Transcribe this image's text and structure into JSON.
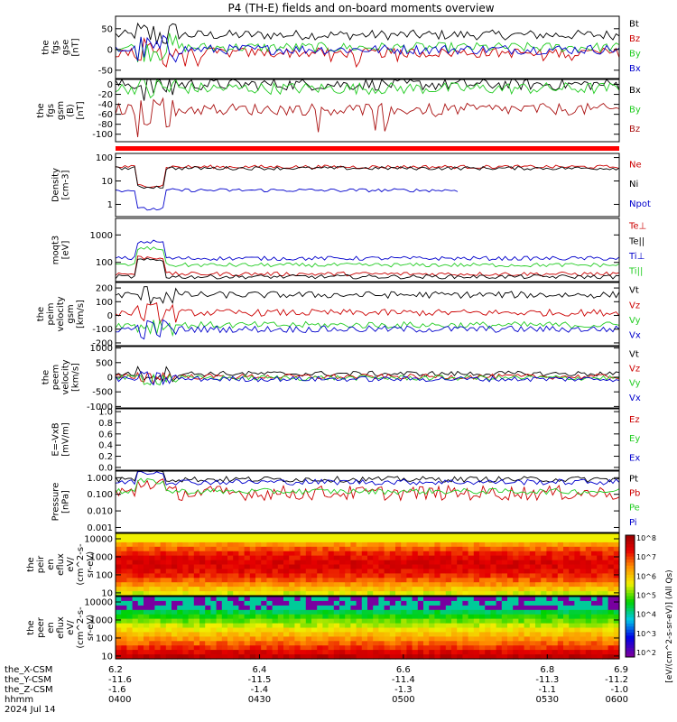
{
  "title": "P4 (TH-E) fields and on-board moments overview",
  "date_label": "2024 Jul 14",
  "colors": {
    "black": "#000000",
    "red": "#cc0000",
    "green": "#22cc22",
    "blue": "#0000cc",
    "darkred": "#aa1111"
  },
  "chart_data": [
    {
      "type": "line",
      "id": "fgs_gse",
      "ylabel": [
        "the",
        "fgs",
        "gse",
        "[nT]"
      ],
      "ylim": [
        -70,
        80
      ],
      "ticks": [
        "50",
        "0",
        "-50"
      ],
      "tick_values": [
        50,
        0,
        -50
      ],
      "series": [
        {
          "name": "Bt",
          "color": "black"
        },
        {
          "name": "Bz",
          "color": "red"
        },
        {
          "name": "By",
          "color": "green"
        },
        {
          "name": "Bx",
          "color": "blue"
        }
      ]
    },
    {
      "type": "line",
      "id": "fgs_gsm",
      "ylabel": [
        "the",
        "fgs",
        "gsm",
        "(B)",
        "[nT]"
      ],
      "ylim": [
        -115,
        10
      ],
      "ticks": [
        "0",
        "-20",
        "-40",
        "-60",
        "-80",
        "-100"
      ],
      "tick_values": [
        0,
        -20,
        -40,
        -60,
        -80,
        -100
      ],
      "series": [
        {
          "name": "Bx",
          "color": "black"
        },
        {
          "name": "By",
          "color": "green"
        },
        {
          "name": "Bz",
          "color": "darkred"
        }
      ]
    },
    {
      "type": "line",
      "id": "density",
      "ylabel": [
        "Density",
        "[cm-3]"
      ],
      "log": true,
      "ylim": [
        0.3,
        150
      ],
      "ticks": [
        "100",
        "10",
        "1"
      ],
      "tick_values": [
        100,
        10,
        1
      ],
      "series": [
        {
          "name": "Ne",
          "color": "red"
        },
        {
          "name": "Ni",
          "color": "black"
        },
        {
          "name": "Npot",
          "color": "blue"
        }
      ]
    },
    {
      "type": "line",
      "id": "temperature",
      "ylabel": [
        "moqt3",
        "[eV]"
      ],
      "log": true,
      "ylim": [
        20,
        4000
      ],
      "ticks": [
        "1000",
        "100"
      ],
      "tick_values": [
        1000,
        100
      ],
      "series": [
        {
          "name": "Te⊥",
          "color": "red"
        },
        {
          "name": "Te||",
          "color": "black"
        },
        {
          "name": "Ti⊥",
          "color": "blue"
        },
        {
          "name": "Ti||",
          "color": "green"
        }
      ]
    },
    {
      "type": "line",
      "id": "peim_velocity",
      "ylabel": [
        "the",
        "peim",
        "velocity",
        "gsm",
        "[km/s]"
      ],
      "ylim": [
        -220,
        240
      ],
      "ticks": [
        "200",
        "100",
        "0",
        "-100",
        "-200"
      ],
      "tick_values": [
        200,
        100,
        0,
        -100,
        -200
      ],
      "series": [
        {
          "name": "Vt",
          "color": "black"
        },
        {
          "name": "Vz",
          "color": "red"
        },
        {
          "name": "Vy",
          "color": "green"
        },
        {
          "name": "Vx",
          "color": "blue"
        }
      ]
    },
    {
      "type": "line",
      "id": "peem_velocity",
      "ylabel": [
        "the",
        "peem",
        "velocity",
        "[km/s]"
      ],
      "ylim": [
        -1050,
        1050
      ],
      "ticks": [
        "1000",
        "500",
        "0",
        "-500",
        "-1000"
      ],
      "tick_values": [
        1000,
        500,
        0,
        -500,
        -1000
      ],
      "series": [
        {
          "name": "Vt",
          "color": "black"
        },
        {
          "name": "Vz",
          "color": "red"
        },
        {
          "name": "Vy",
          "color": "green"
        },
        {
          "name": "Vx",
          "color": "blue"
        }
      ]
    },
    {
      "type": "line",
      "id": "efield",
      "ylabel": [
        "E=-VxB",
        "[mV/m]"
      ],
      "ylim": [
        -0.05,
        1.05
      ],
      "ticks": [
        "1.0",
        "0.8",
        "0.6",
        "0.4",
        "0.2",
        "0.0"
      ],
      "tick_values": [
        1.0,
        0.8,
        0.6,
        0.4,
        0.2,
        0.0
      ],
      "series": [
        {
          "name": "Ez",
          "color": "red"
        },
        {
          "name": "Ey",
          "color": "green"
        },
        {
          "name": "Ex",
          "color": "blue"
        }
      ]
    },
    {
      "type": "line",
      "id": "pressure",
      "ylabel": [
        "Pressure",
        "[nPa]"
      ],
      "log": true,
      "ylim": [
        0.0005,
        2.5
      ],
      "ticks": [
        "1.000",
        "0.100",
        "0.010",
        "0.001"
      ],
      "tick_values": [
        1,
        0.1,
        0.01,
        0.001
      ],
      "series": [
        {
          "name": "Pt",
          "color": "black"
        },
        {
          "name": "Pb",
          "color": "red"
        },
        {
          "name": "Pe",
          "color": "green"
        },
        {
          "name": "Pi",
          "color": "blue"
        }
      ]
    },
    {
      "type": "heatmap",
      "id": "peir_eflux",
      "ylabel": [
        "the",
        "peir",
        "en",
        "eflux",
        "eV/",
        "(cm^2-s-",
        "sr-eV)"
      ],
      "log": true,
      "ylim": [
        7,
        20000
      ],
      "ticks": [
        "10000",
        "1000",
        "100",
        "10"
      ],
      "tick_values": [
        10000,
        1000,
        100,
        10
      ]
    },
    {
      "type": "heatmap",
      "id": "peer_eflux",
      "ylabel": [
        "the",
        "peer",
        "en",
        "eflux",
        "eV/",
        "(cm^2-s-",
        "sr-eV)"
      ],
      "log": true,
      "ylim": [
        7,
        20000
      ],
      "ticks": [
        "10000",
        "1000",
        "100",
        "10"
      ],
      "tick_values": [
        10000,
        1000,
        100,
        10
      ]
    }
  ],
  "colorbar": {
    "label": "[eV/(cm^2-s-sr-eV)] (All Qs)",
    "ticks": [
      "10^8",
      "10^7",
      "10^6",
      "10^5",
      "10^4",
      "10^3",
      "10^2"
    ]
  },
  "xaxis": {
    "range": [
      6.2,
      6.9
    ],
    "row_labels": [
      "the_X-CSM",
      "the_Y-CSM",
      "the_Z-CSM",
      "hhmm"
    ],
    "columns": [
      {
        "x": 6.2,
        "X": "6.2",
        "Y": "-11.6",
        "Z": "-1.6",
        "t": "0400"
      },
      {
        "x": 6.4,
        "X": "6.4",
        "Y": "-11.5",
        "Z": "-1.4",
        "t": "0430"
      },
      {
        "x": 6.6,
        "X": "6.6",
        "Y": "-11.4",
        "Z": "-1.3",
        "t": "0500"
      },
      {
        "x": 6.8,
        "X": "6.8",
        "Y": "-11.3",
        "Z": "-1.1",
        "t": "0530"
      },
      {
        "x": 6.9,
        "X": "6.9",
        "Y": "-11.2",
        "Z": "-1.0",
        "t": "0600"
      }
    ]
  }
}
